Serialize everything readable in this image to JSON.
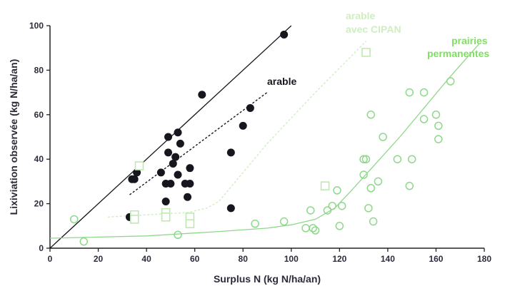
{
  "chart_data": {
    "type": "scatter",
    "xlabel": "Surplus N (kg N/ha/an)",
    "ylabel": "Lixiviation observée (kg N/ha/an)",
    "xlim": [
      0,
      180
    ],
    "ylim": [
      0,
      100
    ],
    "xticks": [
      "0",
      "20",
      "40",
      "60",
      "80",
      "100",
      "120",
      "140",
      "160",
      "180"
    ],
    "yticks": [
      "0",
      "20",
      "40",
      "60",
      "80",
      "100"
    ],
    "grid": false,
    "colors": {
      "dark": "#16161e",
      "light_green": "#bde6b0",
      "mid_green": "#8ed88a",
      "bright_green": "#7fe05f",
      "axis": "#222222"
    },
    "annotations": {
      "arable": "arable",
      "cipan_line1": "arable",
      "cipan_line2": "avec CIPAN",
      "prairies_line1": "prairies",
      "prairies_line2": "permanentes"
    },
    "series": [
      {
        "name": "arable",
        "marker": "filled-circle",
        "color": "#16161e",
        "points": [
          [
            33,
            14
          ],
          [
            34,
            31
          ],
          [
            35,
            31
          ],
          [
            36,
            34
          ],
          [
            46,
            34
          ],
          [
            48,
            29
          ],
          [
            48,
            21
          ],
          [
            49,
            50
          ],
          [
            49,
            43
          ],
          [
            50,
            29
          ],
          [
            51,
            38
          ],
          [
            52,
            41
          ],
          [
            53,
            52
          ],
          [
            53,
            33
          ],
          [
            54,
            47
          ],
          [
            56,
            29
          ],
          [
            57,
            23
          ],
          [
            58,
            36
          ],
          [
            58,
            29
          ],
          [
            63,
            69
          ],
          [
            75,
            43
          ],
          [
            75,
            18
          ],
          [
            80,
            55
          ],
          [
            83,
            63
          ],
          [
            97,
            96
          ]
        ]
      },
      {
        "name": "arable avec CIPAN",
        "marker": "open-square",
        "color": "#bde6b0",
        "points": [
          [
            35,
            15
          ],
          [
            35,
            13
          ],
          [
            37,
            37
          ],
          [
            48,
            16
          ],
          [
            48,
            14
          ],
          [
            58,
            14
          ],
          [
            58,
            11
          ],
          [
            114,
            28
          ],
          [
            131,
            88
          ]
        ]
      },
      {
        "name": "prairies permanentes",
        "marker": "open-circle",
        "color": "#8ed88a",
        "points": [
          [
            10,
            13
          ],
          [
            14,
            3
          ],
          [
            53,
            6
          ],
          [
            85,
            11
          ],
          [
            97,
            12
          ],
          [
            106,
            9
          ],
          [
            108,
            17
          ],
          [
            109,
            9
          ],
          [
            110,
            8
          ],
          [
            115,
            17
          ],
          [
            117,
            19
          ],
          [
            119,
            26
          ],
          [
            120,
            10
          ],
          [
            121,
            19
          ],
          [
            130,
            33
          ],
          [
            130,
            40
          ],
          [
            131,
            40
          ],
          [
            132,
            18
          ],
          [
            133,
            60
          ],
          [
            133,
            27
          ],
          [
            134,
            12
          ],
          [
            136,
            30
          ],
          [
            138,
            50
          ],
          [
            144,
            40
          ],
          [
            149,
            70
          ],
          [
            149,
            28
          ],
          [
            150,
            40
          ],
          [
            155,
            70
          ],
          [
            155,
            58
          ],
          [
            160,
            60
          ],
          [
            161,
            55
          ],
          [
            161,
            49
          ],
          [
            166,
            75
          ]
        ]
      }
    ],
    "lines": [
      {
        "name": "1:1 line",
        "style": "solid",
        "color": "#16161e",
        "points": [
          [
            0,
            0
          ],
          [
            100,
            100
          ]
        ]
      },
      {
        "name": "arable trend",
        "style": "dashed",
        "color": "#16161e",
        "points": [
          [
            33,
            24
          ],
          [
            90,
            70
          ]
        ]
      },
      {
        "name": "arable avec CIPAN trend",
        "style": "dashed",
        "color": "#cfeec0",
        "points": [
          [
            24,
            14
          ],
          [
            40,
            15
          ],
          [
            57,
            16
          ],
          [
            65,
            18
          ],
          [
            70,
            21
          ],
          [
            90,
            47
          ],
          [
            110,
            70
          ],
          [
            131,
            93
          ]
        ]
      },
      {
        "name": "prairies permanentes trend",
        "style": "solid",
        "color": "#8ed88a",
        "points": [
          [
            0,
            4.5
          ],
          [
            40,
            5.5
          ],
          [
            70,
            7.5
          ],
          [
            90,
            9
          ],
          [
            100,
            10.5
          ],
          [
            110,
            13
          ],
          [
            118,
            18
          ],
          [
            125,
            26
          ],
          [
            135,
            38
          ],
          [
            145,
            50
          ],
          [
            155,
            63
          ],
          [
            165,
            76
          ],
          [
            178,
            92
          ]
        ]
      }
    ]
  }
}
